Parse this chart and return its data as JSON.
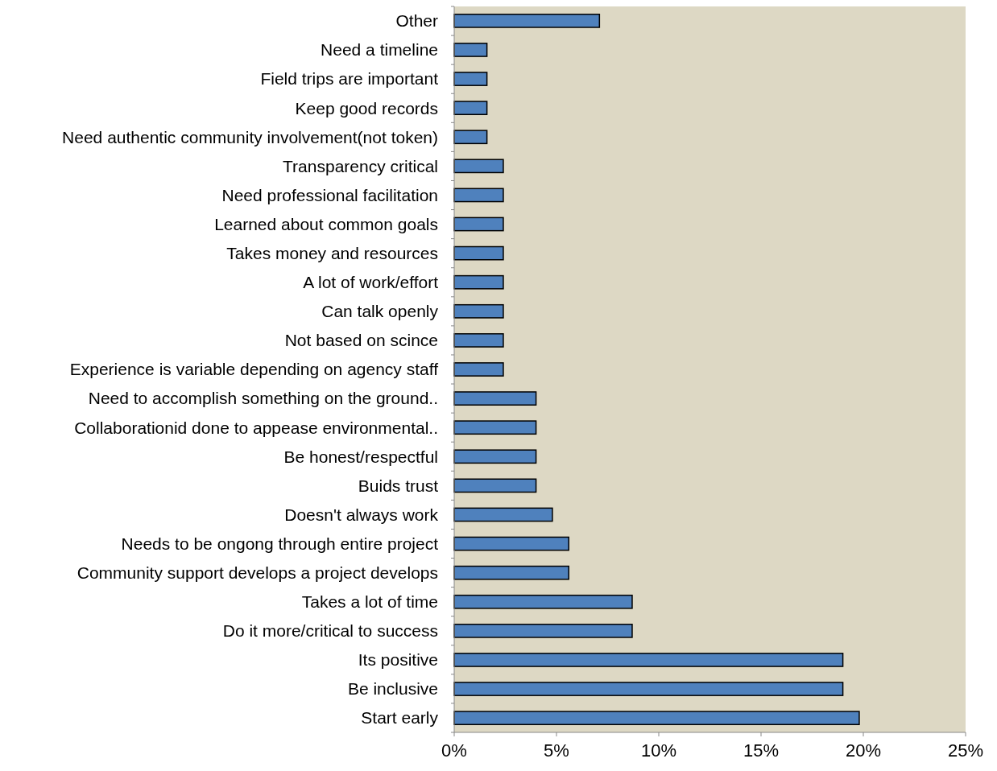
{
  "chart_data": {
    "type": "bar",
    "orientation": "horizontal",
    "categories": [
      "Other",
      "Need a timeline",
      "Field trips are important",
      "Keep good records",
      "Need authentic community involvement(not token)",
      "Transparency critical",
      "Need professional facilitation",
      "Learned about common goals",
      "Takes money and resources",
      "A lot of work/effort",
      "Can talk openly",
      "Not based on scince",
      "Experience is variable depending on agency staff",
      "Need to accomplish something on the ground..",
      "Collaborationid done to appease environmental..",
      "Be honest/respectful",
      "Buids trust",
      "Doesn't always work",
      "Needs to be ongong through entire project",
      "Community support develops a project develops",
      "Takes a lot of time",
      "Do it more/critical to success",
      "Its positive",
      "Be inclusive",
      "Start early"
    ],
    "values": [
      7.1,
      1.6,
      1.6,
      1.6,
      1.6,
      2.4,
      2.4,
      2.4,
      2.4,
      2.4,
      2.4,
      2.4,
      2.4,
      4.0,
      4.0,
      4.0,
      4.0,
      4.8,
      5.6,
      5.6,
      8.7,
      8.7,
      19.0,
      19.0,
      19.8
    ],
    "color": "#4f81bd",
    "xlim": [
      0,
      25
    ],
    "xticks": [
      {
        "value": 0,
        "label": "0%"
      },
      {
        "value": 5,
        "label": "5%"
      },
      {
        "value": 10,
        "label": "10%"
      },
      {
        "value": 15,
        "label": "15%"
      },
      {
        "value": 20,
        "label": "20%"
      },
      {
        "value": 25,
        "label": "25%"
      }
    ],
    "grid": false
  }
}
